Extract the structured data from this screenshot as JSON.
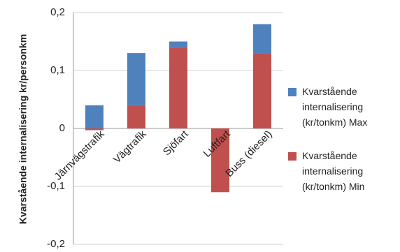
{
  "chart_data": {
    "type": "stacked_bar",
    "y_label": "Kvarstående internalisering kr/personkm",
    "categories": [
      "Järnvägstrafik",
      "Vägtrafik",
      "Sjöfart",
      "Luftfart",
      "Buss (diesel)"
    ],
    "series": [
      {
        "name": "Kvarstående internalisering (kr/tonkm) Max",
        "color": "#4f81bd",
        "values": [
          0.04,
          0.09,
          0.01,
          0,
          0.05
        ]
      },
      {
        "name": "Kvarstående internalisering (kr/tonkm) Min",
        "color": "#c0504d",
        "values": [
          -0.003,
          0.04,
          0.14,
          -0.11,
          0.13
        ]
      }
    ],
    "stack_order": [
      1,
      0
    ],
    "ylim": [
      -0.2,
      0.2
    ],
    "yticks": [
      {
        "value": -0.2,
        "label": "-0,2"
      },
      {
        "value": -0.1,
        "label": "-0,1"
      },
      0,
      {
        "value": 0.1,
        "label": "0,1"
      },
      {
        "value": 0.2,
        "label": "0,2"
      }
    ],
    "grid": true,
    "legend": "right"
  }
}
